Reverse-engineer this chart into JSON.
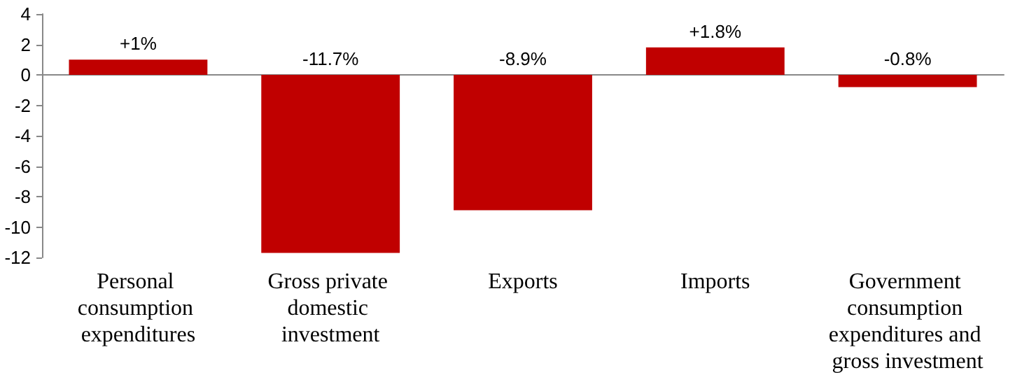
{
  "chart_data": {
    "type": "bar",
    "categories": [
      "Personal consumption expenditures",
      "Gross private domestic investment",
      "Exports",
      "Imports",
      "Government consumption expenditures and gross investment"
    ],
    "values": [
      1,
      -11.7,
      -8.9,
      1.8,
      -0.8
    ],
    "value_labels": [
      "+1%",
      "-11.7%",
      "-8.9%",
      "+1.8%",
      "-0.8%"
    ],
    "color": "#c00000",
    "ylim": [
      -12,
      4
    ],
    "yticks": [
      -12,
      -10,
      -8,
      -6,
      -4,
      -2,
      0,
      2,
      4
    ]
  }
}
